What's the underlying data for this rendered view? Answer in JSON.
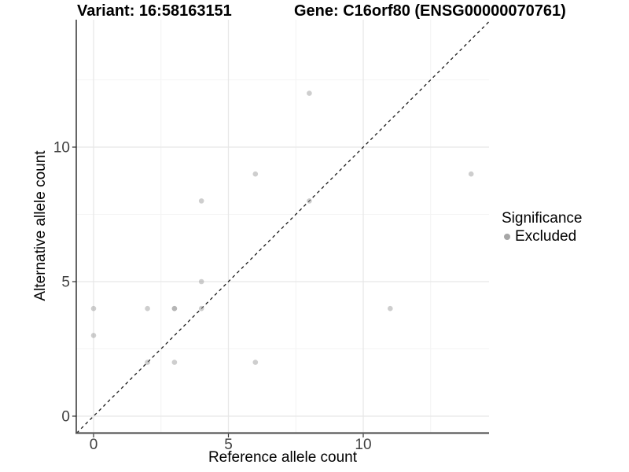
{
  "chart_data": {
    "type": "scatter",
    "title_variant": "Variant: 16:58163151",
    "title_gene": "Gene: C16orf80 (ENSG00000070761)",
    "xlabel": "Reference allele count",
    "ylabel": "Alternative allele count",
    "xlim": [
      -0.7,
      14.75
    ],
    "ylim": [
      -0.7,
      14.75
    ],
    "x_ticks": [
      0,
      5,
      10
    ],
    "y_ticks": [
      0,
      5,
      10
    ],
    "x_minor_ticks": [
      2.5,
      7.5,
      12.5
    ],
    "y_minor_ticks": [
      2.5,
      7.5,
      12.5
    ],
    "grid": true,
    "identity_line": {
      "style": "dashed",
      "slope": 1,
      "intercept": 0,
      "color": "#1a1a1a"
    },
    "points": [
      {
        "x": 0,
        "y": 3
      },
      {
        "x": 0,
        "y": 4
      },
      {
        "x": 2,
        "y": 2
      },
      {
        "x": 2,
        "y": 4
      },
      {
        "x": 3,
        "y": 2
      },
      {
        "x": 3,
        "y": 4,
        "overplotted": true
      },
      {
        "x": 4,
        "y": 4
      },
      {
        "x": 4,
        "y": 5
      },
      {
        "x": 4,
        "y": 8
      },
      {
        "x": 6,
        "y": 2
      },
      {
        "x": 6,
        "y": 9
      },
      {
        "x": 8,
        "y": 8
      },
      {
        "x": 8,
        "y": 12
      },
      {
        "x": 11,
        "y": 4
      },
      {
        "x": 14,
        "y": 9
      }
    ],
    "point_color": "#9e9e9e",
    "point_alpha": 0.5,
    "legend": {
      "position": "right",
      "title": "Significance",
      "items": [
        {
          "label": "Excluded",
          "color": "#a6a6a6"
        }
      ]
    },
    "colors": {
      "grid_major": "#e7e7e7",
      "grid_minor": "#f4f4f4",
      "axis_line_left": "#000000",
      "axis_line_bottom": "#595959",
      "tick": "#333333",
      "tick_label": "#404040",
      "text": "#000000",
      "background": "#ffffff"
    }
  }
}
